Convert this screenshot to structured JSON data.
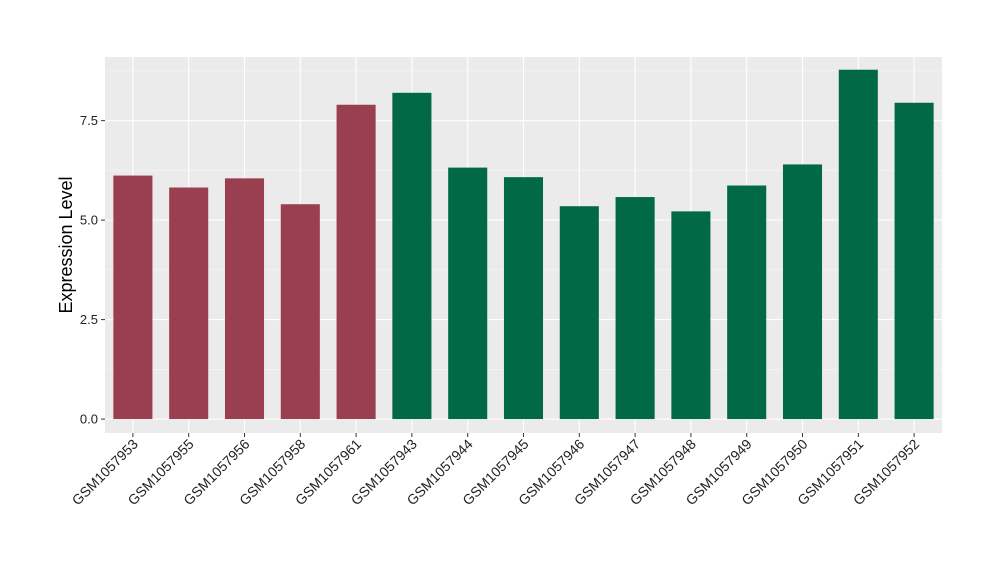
{
  "chart_data": {
    "type": "bar",
    "title": "",
    "xlabel": "",
    "ylabel": "Expression Level",
    "ylim": [
      -0.35,
      9.1
    ],
    "yticks": [
      0.0,
      2.5,
      5.0,
      7.5
    ],
    "ytick_labels": [
      "0.0",
      "2.5",
      "5.0",
      "7.5"
    ],
    "grid": true,
    "legend": "none",
    "categories": [
      "GSM1057953",
      "GSM1057955",
      "GSM1057956",
      "GSM1057958",
      "GSM1057961",
      "GSM1057943",
      "GSM1057944",
      "GSM1057945",
      "GSM1057946",
      "GSM1057947",
      "GSM1057948",
      "GSM1057949",
      "GSM1057950",
      "GSM1057951",
      "GSM1057952"
    ],
    "values": [
      6.12,
      5.82,
      6.05,
      5.4,
      7.9,
      8.2,
      6.32,
      6.08,
      5.35,
      5.58,
      5.22,
      5.87,
      6.4,
      8.78,
      7.95
    ],
    "bar_colors": [
      "#9a3f4f",
      "#9a3f4f",
      "#9a3f4f",
      "#9a3f4f",
      "#9a3f4f",
      "#016945",
      "#016945",
      "#016945",
      "#016945",
      "#016945",
      "#016945",
      "#016945",
      "#016945",
      "#016945",
      "#016945"
    ],
    "colors": {
      "panel_background": "#ebebeb",
      "grid_major": "#ffffff",
      "group_a": "#9a3f4f",
      "group_b": "#016945"
    }
  }
}
